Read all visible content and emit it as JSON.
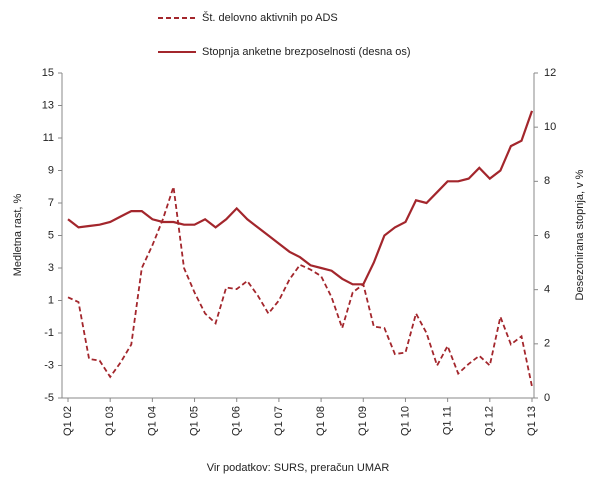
{
  "chart_data": {
    "type": "line",
    "y_label": "Medletna rast, %",
    "y2_label": "Desezonirana stopnja, v %",
    "source": "Vir podatkov: SURS, preračun UMAR",
    "categories": [
      "Q1 02",
      null,
      null,
      null,
      "Q1 03",
      null,
      null,
      null,
      "Q1 04",
      null,
      null,
      null,
      "Q1 05",
      null,
      null,
      null,
      "Q1 06",
      null,
      null,
      null,
      "Q1 07",
      null,
      null,
      null,
      "Q1 08",
      null,
      null,
      null,
      "Q1 09",
      null,
      null,
      null,
      "Q1 10",
      null,
      null,
      null,
      "Q1 11",
      null,
      null,
      null,
      "Q1 12",
      null,
      null,
      null,
      "Q1 13"
    ],
    "series": [
      {
        "name": "Št. delovno aktivnih po ADS",
        "color": "#a3262c",
        "dash": true,
        "values": [
          1.2,
          0.9,
          -2.6,
          -2.7,
          -3.7,
          -2.8,
          -1.7,
          3.0,
          4.4,
          6.0,
          8.0,
          3.0,
          1.5,
          0.2,
          -0.4,
          1.8,
          1.7,
          2.2,
          1.3,
          0.2,
          1.0,
          2.3,
          3.2,
          2.9,
          2.5,
          1.2,
          -0.7,
          1.5,
          2.0,
          -0.6,
          -0.7,
          -2.3,
          -2.2,
          0.2,
          -1.0,
          -3.0,
          -1.8,
          -3.5,
          -2.9,
          -2.4,
          -3.0,
          0.0,
          -1.7,
          -1.2,
          -4.3
        ]
      },
      {
        "name": "Stopnja anketne brezposelnosti (desna os)",
        "color": "#a3262c",
        "dash": false,
        "axis": "y2",
        "values": [
          6.6,
          6.3,
          6.35,
          6.4,
          6.5,
          6.7,
          6.9,
          6.9,
          6.6,
          6.5,
          6.5,
          6.4,
          6.4,
          6.6,
          6.3,
          6.6,
          7.0,
          6.6,
          6.3,
          6.0,
          5.7,
          5.4,
          5.2,
          4.9,
          4.8,
          4.7,
          4.4,
          4.2,
          4.2,
          5.0,
          6.0,
          6.3,
          6.5,
          7.3,
          7.2,
          7.6,
          8.0,
          8.0,
          8.1,
          8.5,
          8.1,
          8.4,
          9.3,
          9.5,
          10.6
        ]
      }
    ],
    "ylim": [
      -5,
      15
    ],
    "yticks": [
      -5,
      -3,
      -1,
      1,
      3,
      5,
      7,
      9,
      11,
      13,
      15
    ],
    "y2lim": [
      0,
      12
    ],
    "y2ticks": [
      0,
      2,
      4,
      6,
      8,
      10,
      12
    ],
    "grid": false
  }
}
